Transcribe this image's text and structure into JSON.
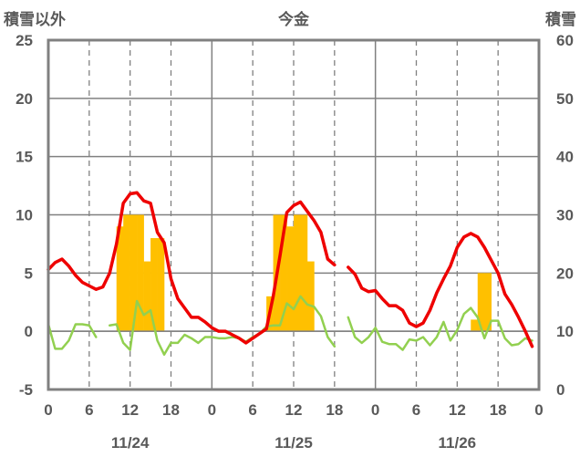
{
  "chart_data": {
    "type": "line",
    "title": "今金",
    "left_axis_label": "積雪以外",
    "right_axis_label": "積雪",
    "left_ylim": [
      -5,
      25
    ],
    "left_ticks": [
      "-5",
      "0",
      "5",
      "10",
      "15",
      "20",
      "25"
    ],
    "right_ylim": [
      0,
      60
    ],
    "right_ticks": [
      "0",
      "10",
      "20",
      "30",
      "40",
      "50",
      "60"
    ],
    "xlim": [
      0,
      72
    ],
    "x_tick_labels": [
      "0",
      "6",
      "12",
      "18",
      "0",
      "6",
      "12",
      "18",
      "0",
      "6",
      "12",
      "18",
      "0"
    ],
    "date_labels": [
      "11/24",
      "11/25",
      "11/26"
    ],
    "grid": "vertical dashed every 6h, solid at day boundaries, horizontal solid every 5 units",
    "colors": {
      "temperature": "#ee0000",
      "precip_green": "#92d050",
      "snow_depth": "#ffc000",
      "purple": "#7030a0",
      "axis": "#808080",
      "grid": "#808080"
    },
    "series": [
      {
        "kind": "bar_left_axis",
        "color": "#ffc000",
        "points": [
          [
            10,
            9
          ],
          [
            11,
            10
          ],
          [
            12,
            10
          ],
          [
            13,
            10
          ],
          [
            14,
            6
          ],
          [
            15,
            8
          ],
          [
            16,
            8
          ],
          [
            32,
            3
          ],
          [
            33,
            10
          ],
          [
            34,
            10
          ],
          [
            35,
            9
          ],
          [
            36,
            10
          ],
          [
            37,
            10
          ],
          [
            38,
            6
          ],
          [
            62,
            1
          ],
          [
            63,
            5
          ],
          [
            64,
            5
          ]
        ]
      },
      {
        "kind": "line_left_axis",
        "color": "#ee0000",
        "points": [
          [
            0,
            5.3
          ],
          [
            1,
            5.9
          ],
          [
            2,
            6.2
          ],
          [
            3,
            5.6
          ],
          [
            4,
            4.8
          ],
          [
            5,
            4.2
          ],
          [
            6,
            3.9
          ],
          [
            7,
            3.6
          ],
          [
            8,
            3.8
          ],
          [
            9,
            5.0
          ],
          [
            10,
            7.5
          ],
          [
            11,
            11.0
          ],
          [
            12,
            11.8
          ],
          [
            13,
            11.9
          ],
          [
            14,
            11.2
          ],
          [
            15,
            11.0
          ],
          [
            16,
            8.5
          ],
          [
            17,
            7.6
          ],
          [
            18,
            4.5
          ],
          [
            19,
            2.8
          ],
          [
            20,
            2.0
          ],
          [
            21,
            1.2
          ],
          [
            22,
            1.2
          ],
          [
            23,
            0.8
          ],
          [
            24,
            0.3
          ],
          [
            25,
            0.0
          ],
          [
            26,
            0.0
          ],
          [
            27,
            -0.3
          ],
          [
            28,
            -0.6
          ],
          [
            29,
            -1.0
          ],
          [
            30,
            -0.6
          ],
          [
            31,
            -0.2
          ],
          [
            32,
            0.2
          ],
          [
            33,
            3.0
          ],
          [
            34,
            6.5
          ],
          [
            35,
            10.2
          ],
          [
            36,
            10.8
          ],
          [
            37,
            11.1
          ],
          [
            38,
            10.3
          ],
          [
            39,
            9.5
          ],
          [
            40,
            8.5
          ],
          [
            41,
            6.2
          ],
          [
            42,
            5.7
          ],
          null,
          [
            44,
            5.5
          ],
          [
            45,
            4.9
          ],
          [
            46,
            3.7
          ],
          [
            47,
            3.4
          ],
          [
            48,
            3.5
          ],
          [
            49,
            2.8
          ],
          [
            50,
            2.2
          ],
          [
            51,
            2.2
          ],
          [
            52,
            1.8
          ],
          [
            53,
            0.7
          ],
          [
            54,
            0.4
          ],
          [
            55,
            0.7
          ],
          [
            56,
            1.8
          ],
          [
            57,
            3.3
          ],
          [
            58,
            4.5
          ],
          [
            59,
            5.6
          ],
          [
            60,
            7.2
          ],
          [
            61,
            8.1
          ],
          [
            62,
            8.4
          ],
          [
            63,
            8.1
          ],
          [
            64,
            7.2
          ],
          [
            65,
            6.1
          ],
          [
            66,
            5.0
          ],
          [
            67,
            3.2
          ],
          [
            68,
            2.3
          ],
          [
            69,
            1.2
          ],
          [
            70,
            0.0
          ],
          [
            71,
            -1.3
          ]
        ]
      },
      {
        "kind": "line_left_axis",
        "color": "#92d050",
        "points": [
          [
            0,
            0.6
          ],
          [
            1,
            -1.5
          ],
          [
            2,
            -1.5
          ],
          [
            3,
            -0.8
          ],
          [
            4,
            0.6
          ],
          [
            5,
            0.6
          ],
          [
            6,
            0.5
          ],
          [
            7,
            -0.5
          ],
          null,
          [
            9,
            0.5
          ],
          [
            10,
            0.6
          ],
          [
            11,
            -1.0
          ],
          [
            12,
            -1.6
          ],
          [
            13,
            2.6
          ],
          [
            14,
            1.4
          ],
          [
            15,
            1.8
          ],
          [
            16,
            -0.8
          ],
          [
            17,
            -2.0
          ],
          [
            18,
            -1.0
          ],
          [
            19,
            -1.0
          ],
          [
            20,
            -0.3
          ],
          [
            21,
            -0.6
          ],
          [
            22,
            -1.0
          ],
          [
            23,
            -0.5
          ],
          [
            24,
            -0.5
          ],
          [
            25,
            -0.6
          ],
          [
            26,
            -0.6
          ],
          [
            27,
            -0.5
          ],
          [
            28,
            -0.6
          ],
          [
            29,
            -0.9
          ],
          [
            30,
            -0.5
          ],
          [
            31,
            -0.2
          ],
          [
            32,
            0.4
          ],
          [
            33,
            0.5
          ],
          [
            34,
            0.5
          ],
          [
            35,
            2.4
          ],
          [
            36,
            1.9
          ],
          [
            37,
            3.0
          ],
          [
            38,
            2.3
          ],
          [
            39,
            2.1
          ],
          [
            40,
            1.3
          ],
          [
            41,
            -0.5
          ],
          [
            42,
            -1.3
          ],
          null,
          [
            44,
            1.2
          ],
          [
            45,
            -0.5
          ],
          [
            46,
            -1.0
          ],
          [
            47,
            -0.5
          ],
          [
            48,
            0.3
          ],
          [
            49,
            -0.9
          ],
          [
            50,
            -1.1
          ],
          [
            51,
            -1.1
          ],
          [
            52,
            -1.6
          ],
          [
            53,
            -0.7
          ],
          [
            54,
            -0.8
          ],
          [
            55,
            -0.5
          ],
          [
            56,
            -1.2
          ],
          [
            57,
            -0.5
          ],
          [
            58,
            0.8
          ],
          [
            59,
            -0.8
          ],
          [
            60,
            0.1
          ],
          [
            61,
            1.5
          ],
          [
            62,
            2.0
          ],
          [
            63,
            1.2
          ],
          [
            64,
            -0.6
          ],
          [
            65,
            0.9
          ],
          [
            66,
            0.9
          ],
          [
            67,
            -0.6
          ],
          [
            68,
            -1.2
          ],
          [
            69,
            -1.1
          ],
          [
            70,
            -0.6
          ],
          [
            71,
            -0.8
          ]
        ]
      },
      {
        "kind": "line_left_axis",
        "color": "#7030a0",
        "points": [
          [
            0,
            -5
          ],
          [
            72,
            -5
          ]
        ]
      }
    ]
  }
}
